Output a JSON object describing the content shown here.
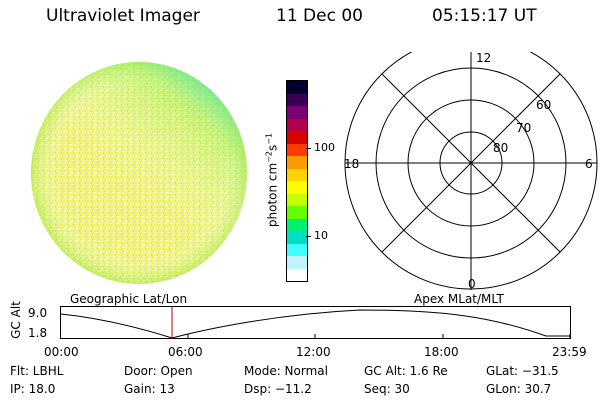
{
  "header": {
    "title": "Ultraviolet Imager",
    "date": "11 Dec 00",
    "time": "05:15:17 UT"
  },
  "colorbar": {
    "label_base": "photon cm",
    "label_exp1": "−2",
    "label_mid": "s",
    "label_exp2": "−1",
    "tick_100": "100",
    "tick_10": "10",
    "colors": [
      "#000033",
      "#3a0050",
      "#7a0074",
      "#b0004a",
      "#d80000",
      "#ff3a00",
      "#ff9a00",
      "#ffd200",
      "#ffff00",
      "#c8ff00",
      "#66ff00",
      "#00f070",
      "#00e0c0",
      "#40ffff",
      "#bff4ff",
      "#ffffff"
    ]
  },
  "polar_grid": {
    "labels": {
      "top": "12",
      "left": "18",
      "right": "6",
      "bottom": "0"
    },
    "ring_labels": [
      "60",
      "70",
      "80"
    ]
  },
  "timeline": {
    "ylabel": "GC Alt",
    "ytick_top": "9.0",
    "ytick_bottom": "1.8",
    "left_title": "Geographic Lat/Lon",
    "right_title": "Apex MLat/MLT",
    "xticks": [
      "00:00",
      "06:00",
      "12:00",
      "18:00",
      "23:59"
    ]
  },
  "info": {
    "flt": "Flt: LBHL",
    "ip": "IP: 18.0",
    "door": "Door: Open",
    "gain": "Gain: 13",
    "mode": "Mode: Normal",
    "dsp": "Dsp:  −11.2",
    "gcalt": "GC Alt: 1.6 Re",
    "seq": "Seq: 30",
    "glat": "GLat:  −31.5",
    "glon": "GLon:  30.7"
  }
}
